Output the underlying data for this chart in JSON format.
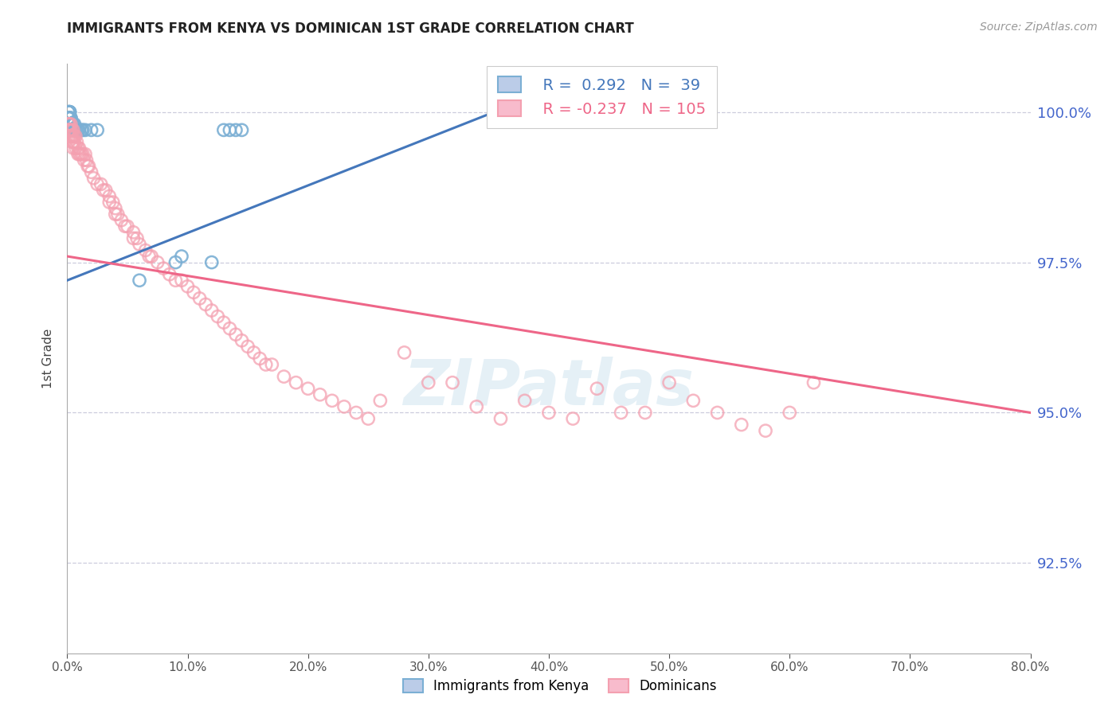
{
  "title": "IMMIGRANTS FROM KENYA VS DOMINICAN 1ST GRADE CORRELATION CHART",
  "source": "Source: ZipAtlas.com",
  "ylabel": "1st Grade",
  "right_ytick_labels": [
    "100.0%",
    "97.5%",
    "95.0%",
    "92.5%"
  ],
  "right_ytick_vals": [
    1.0,
    0.975,
    0.95,
    0.925
  ],
  "legend_blue_label": "Immigrants from Kenya",
  "legend_pink_label": "Dominicans",
  "legend_R_blue": "R =  0.292",
  "legend_N_blue": "N =  39",
  "legend_R_pink": "R = -0.237",
  "legend_N_pink": "N = 105",
  "blue_color": "#7BAFD4",
  "pink_color": "#F4A0B0",
  "blue_line_color": "#4477BB",
  "pink_line_color": "#EE6688",
  "watermark": "ZIPatlas",
  "background_color": "#FFFFFF",
  "grid_color": "#CCCCDD",
  "title_color": "#222222",
  "right_axis_color": "#4466CC",
  "xmin": 0.0,
  "xmax": 0.8,
  "ymin": 0.91,
  "ymax": 1.008,
  "blue_line_x0": 0.0,
  "blue_line_y0": 0.972,
  "blue_line_x1": 0.38,
  "blue_line_y1": 1.002,
  "pink_line_x0": 0.0,
  "pink_line_x1": 0.8,
  "pink_line_y0": 0.976,
  "pink_line_y1": 0.95,
  "blue_x": [
    0.001,
    0.001,
    0.001,
    0.001,
    0.001,
    0.002,
    0.002,
    0.002,
    0.002,
    0.002,
    0.002,
    0.002,
    0.003,
    0.003,
    0.003,
    0.003,
    0.004,
    0.004,
    0.005,
    0.005,
    0.006,
    0.006,
    0.007,
    0.008,
    0.009,
    0.01,
    0.012,
    0.013,
    0.015,
    0.02,
    0.025,
    0.06,
    0.09,
    0.095,
    0.12,
    0.13,
    0.135,
    0.14,
    0.145
  ],
  "blue_y": [
    0.999,
    0.999,
    1.0,
    1.0,
    1.0,
    0.999,
    0.999,
    1.0,
    1.0,
    1.0,
    1.0,
    1.0,
    0.998,
    0.998,
    0.999,
    0.999,
    0.998,
    0.998,
    0.997,
    0.998,
    0.997,
    0.998,
    0.997,
    0.997,
    0.997,
    0.997,
    0.997,
    0.997,
    0.997,
    0.997,
    0.997,
    0.972,
    0.975,
    0.976,
    0.975,
    0.997,
    0.997,
    0.997,
    0.997
  ],
  "pink_x": [
    0.001,
    0.001,
    0.001,
    0.001,
    0.001,
    0.002,
    0.002,
    0.002,
    0.002,
    0.003,
    0.003,
    0.003,
    0.004,
    0.004,
    0.004,
    0.005,
    0.005,
    0.005,
    0.005,
    0.006,
    0.006,
    0.007,
    0.007,
    0.008,
    0.009,
    0.009,
    0.01,
    0.01,
    0.011,
    0.012,
    0.013,
    0.014,
    0.015,
    0.016,
    0.017,
    0.018,
    0.02,
    0.022,
    0.025,
    0.028,
    0.03,
    0.032,
    0.035,
    0.035,
    0.038,
    0.04,
    0.04,
    0.042,
    0.045,
    0.048,
    0.05,
    0.055,
    0.055,
    0.058,
    0.06,
    0.065,
    0.068,
    0.07,
    0.075,
    0.08,
    0.085,
    0.09,
    0.095,
    0.1,
    0.105,
    0.11,
    0.115,
    0.12,
    0.125,
    0.13,
    0.135,
    0.14,
    0.145,
    0.15,
    0.155,
    0.16,
    0.165,
    0.17,
    0.18,
    0.19,
    0.2,
    0.21,
    0.22,
    0.23,
    0.24,
    0.25,
    0.26,
    0.28,
    0.3,
    0.32,
    0.34,
    0.36,
    0.38,
    0.4,
    0.42,
    0.44,
    0.46,
    0.48,
    0.5,
    0.52,
    0.54,
    0.56,
    0.58,
    0.6,
    0.62
  ],
  "pink_y": [
    0.998,
    0.998,
    0.997,
    0.997,
    0.996,
    0.998,
    0.997,
    0.997,
    0.996,
    0.998,
    0.997,
    0.996,
    0.997,
    0.996,
    0.995,
    0.997,
    0.996,
    0.995,
    0.994,
    0.996,
    0.995,
    0.996,
    0.994,
    0.995,
    0.994,
    0.993,
    0.994,
    0.993,
    0.993,
    0.993,
    0.993,
    0.992,
    0.993,
    0.992,
    0.991,
    0.991,
    0.99,
    0.989,
    0.988,
    0.988,
    0.987,
    0.987,
    0.986,
    0.985,
    0.985,
    0.984,
    0.983,
    0.983,
    0.982,
    0.981,
    0.981,
    0.98,
    0.979,
    0.979,
    0.978,
    0.977,
    0.976,
    0.976,
    0.975,
    0.974,
    0.973,
    0.972,
    0.972,
    0.971,
    0.97,
    0.969,
    0.968,
    0.967,
    0.966,
    0.965,
    0.964,
    0.963,
    0.962,
    0.961,
    0.96,
    0.959,
    0.958,
    0.958,
    0.956,
    0.955,
    0.954,
    0.953,
    0.952,
    0.951,
    0.95,
    0.949,
    0.952,
    0.96,
    0.955,
    0.955,
    0.951,
    0.949,
    0.952,
    0.95,
    0.949,
    0.954,
    0.95,
    0.95,
    0.955,
    0.952,
    0.95,
    0.948,
    0.947,
    0.95,
    0.955
  ]
}
